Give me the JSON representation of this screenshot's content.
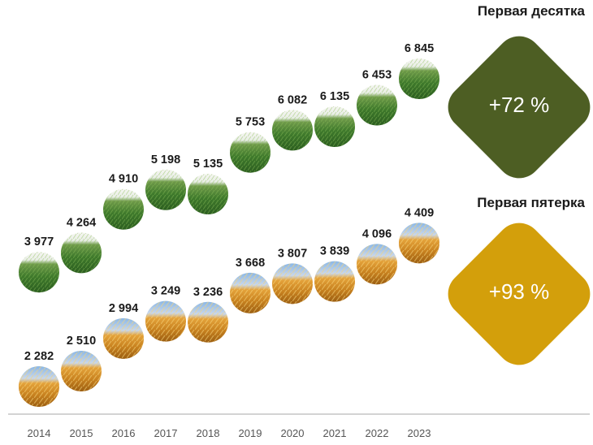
{
  "chart_data": {
    "type": "scatter",
    "categories": [
      "2014",
      "2015",
      "2016",
      "2017",
      "2018",
      "2019",
      "2020",
      "2021",
      "2022",
      "2023"
    ],
    "series": [
      {
        "name": "Первая десятка",
        "values": [
          3977,
          4264,
          4910,
          5198,
          5135,
          5753,
          6082,
          6135,
          6453,
          6845
        ],
        "labels": [
          "3 977",
          "4 264",
          "4 910",
          "5 198",
          "5 135",
          "5 753",
          "6 082",
          "6 135",
          "6 453",
          "6 845"
        ],
        "marker": "green-wheat-field-image",
        "color": "#4d5e23"
      },
      {
        "name": "Первая пятерка",
        "values": [
          2282,
          2510,
          2994,
          3249,
          3236,
          3668,
          3807,
          3839,
          4096,
          4409
        ],
        "labels": [
          "2 282",
          "2 510",
          "2 994",
          "3 249",
          "3 236",
          "3 668",
          "3 807",
          "3 839",
          "4 096",
          "4 409"
        ],
        "marker": "golden-wheat-image",
        "color": "#d39f0b"
      }
    ],
    "legend": "right"
  },
  "badges": {
    "top": {
      "title": "Первая десятка",
      "value": "+72 %",
      "color": "#4d5e23"
    },
    "bottom": {
      "title": "Первая пятерка",
      "value": "+93 %",
      "color": "#d39f0b"
    }
  }
}
